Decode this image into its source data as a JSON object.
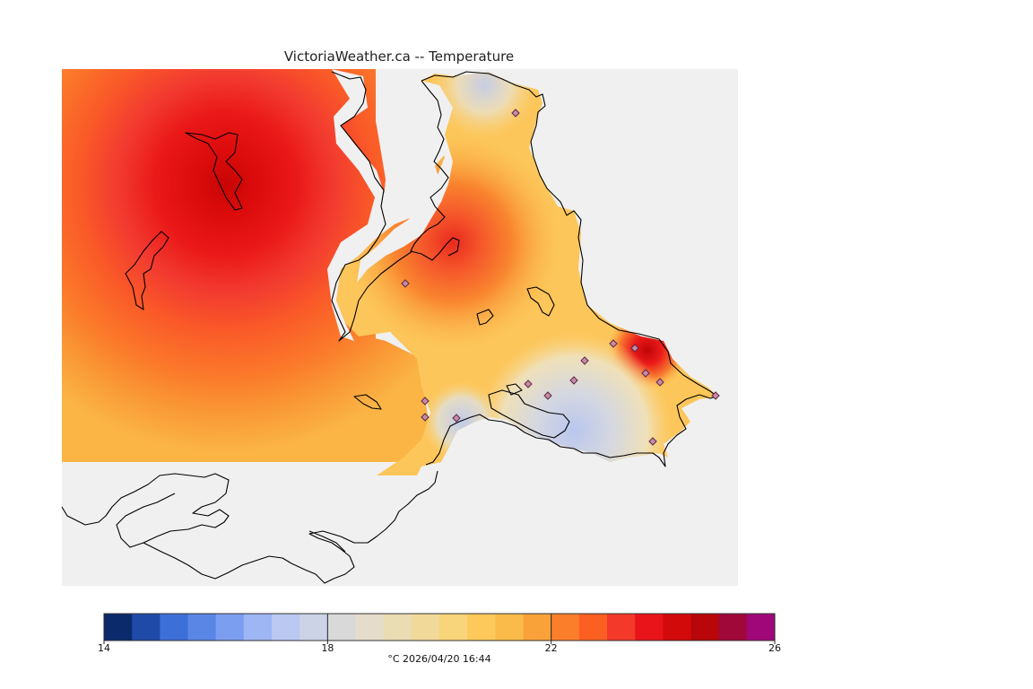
{
  "title": "VictoriaWeather.ca -- Temperature",
  "colorbar": {
    "colors": [
      "#0a2a6b",
      "#1f4aa8",
      "#3d6fd8",
      "#5a86e6",
      "#7b9ef0",
      "#9fb6f4",
      "#bac8f2",
      "#ccd3e6",
      "#d9d9d9",
      "#e6dccb",
      "#eadcb3",
      "#f1d99a",
      "#f8d47a",
      "#fdc95a",
      "#fbbb4a",
      "#f9a23a",
      "#fb7f2a",
      "#fc5f22",
      "#f33a2a",
      "#e8141a",
      "#d30a0a",
      "#b8060a",
      "#a0083a",
      "#a0087a"
    ],
    "tick_labels": [
      "14",
      "18",
      "22",
      "26"
    ],
    "tick_values": [
      14,
      18,
      22,
      26
    ],
    "min": 14,
    "max": 26
  },
  "caption": "°C  2026/04/20 16:44",
  "stations": [
    [
      575,
      126
    ],
    [
      452,
      316
    ],
    [
      684,
      383
    ],
    [
      652,
      402
    ],
    [
      589,
      428
    ],
    [
      640,
      424
    ],
    [
      720,
      416
    ],
    [
      736,
      426
    ],
    [
      611,
      441
    ],
    [
      474,
      447
    ],
    [
      474,
      465
    ],
    [
      509,
      466
    ],
    [
      728,
      492
    ],
    [
      708,
      388
    ],
    [
      798,
      441
    ]
  ]
}
